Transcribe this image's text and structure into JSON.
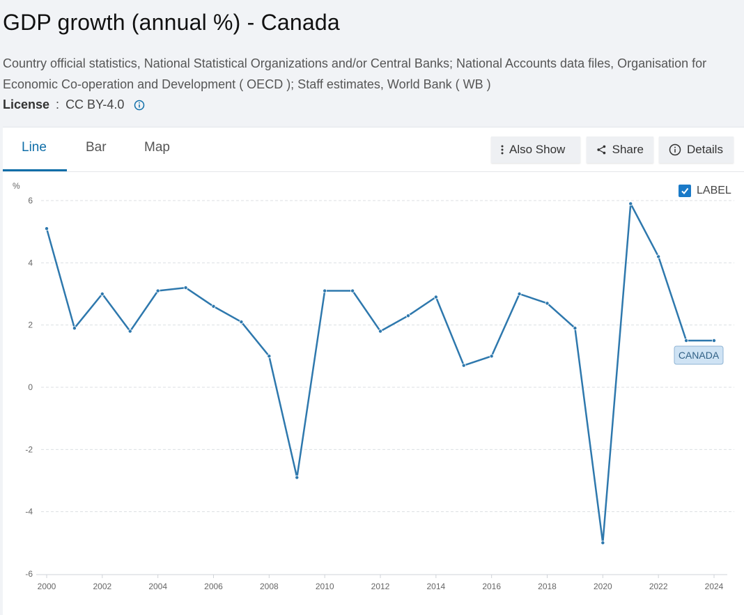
{
  "page": {
    "title": "GDP growth (annual %) - Canada",
    "source": "Country official statistics, National Statistical Organizations and/or Central Banks; National Accounts data files, Organisation for Economic Co-operation and Development ( OECD ); Staff estimates, World Bank ( WB )",
    "license_label": "License",
    "license_sep": " : ",
    "license_value": "CC BY-4.0"
  },
  "tabs": [
    {
      "label": "Line",
      "active": true
    },
    {
      "label": "Bar",
      "active": false
    },
    {
      "label": "Map",
      "active": false
    }
  ],
  "toolbar": {
    "also_show": "Also Show",
    "share": "Share",
    "details": "Details"
  },
  "label_toggle": {
    "text": "LABEL",
    "checked": true
  },
  "colors": {
    "line": "#2e78ad",
    "accent": "#0f6ea8",
    "label_bg": "#cfe3f4"
  },
  "chart_data": {
    "type": "line",
    "title": "GDP growth (annual %) - Canada",
    "ylabel": "%",
    "xlabel": "",
    "ylim": [
      -6,
      6
    ],
    "yticks": [
      6,
      4,
      2,
      0,
      -2,
      -4,
      -6
    ],
    "xticks": [
      2000,
      2002,
      2004,
      2006,
      2008,
      2010,
      2012,
      2014,
      2016,
      2018,
      2020,
      2022,
      2024
    ],
    "grid": "horizontal dashed",
    "series": [
      {
        "name": "CANADA",
        "x": [
          2000,
          2001,
          2002,
          2003,
          2004,
          2005,
          2006,
          2007,
          2008,
          2009,
          2010,
          2011,
          2012,
          2013,
          2014,
          2015,
          2016,
          2017,
          2018,
          2019,
          2020,
          2021,
          2022,
          2023,
          2024
        ],
        "values": [
          5.1,
          1.9,
          3.0,
          1.8,
          3.1,
          3.2,
          2.6,
          2.1,
          1.0,
          -2.9,
          3.1,
          3.1,
          1.8,
          2.3,
          2.9,
          0.7,
          1.0,
          3.0,
          2.7,
          1.9,
          -5.0,
          5.9,
          4.2,
          1.5,
          1.5
        ]
      }
    ]
  }
}
